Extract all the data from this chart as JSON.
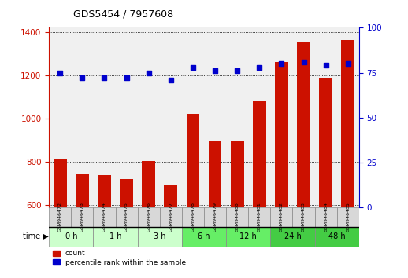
{
  "title": "GDS5454 / 7957608",
  "samples": [
    "GSM946472",
    "GSM946473",
    "GSM946474",
    "GSM946475",
    "GSM946476",
    "GSM946477",
    "GSM946478",
    "GSM946479",
    "GSM946480",
    "GSM946481",
    "GSM946482",
    "GSM946483",
    "GSM946484",
    "GSM946485"
  ],
  "counts": [
    810,
    745,
    737,
    720,
    805,
    695,
    1020,
    895,
    900,
    1080,
    1260,
    1355,
    1190,
    1365
  ],
  "percentile_ranks": [
    75,
    72,
    72,
    72,
    75,
    71,
    78,
    76,
    76,
    78,
    80,
    81,
    79,
    80
  ],
  "time_groups": [
    {
      "label": "0 h",
      "start": 0,
      "end": 2,
      "color": "#ccffcc"
    },
    {
      "label": "1 h",
      "start": 2,
      "end": 4,
      "color": "#ccffcc"
    },
    {
      "label": "3 h",
      "start": 4,
      "end": 6,
      "color": "#ccffcc"
    },
    {
      "label": "6 h",
      "start": 6,
      "end": 8,
      "color": "#66ee66"
    },
    {
      "label": "12 h",
      "start": 8,
      "end": 10,
      "color": "#66ee66"
    },
    {
      "label": "24 h",
      "start": 10,
      "end": 12,
      "color": "#44cc44"
    },
    {
      "label": "48 h",
      "start": 12,
      "end": 14,
      "color": "#44cc44"
    }
  ],
  "ylim_left": [
    590,
    1420
  ],
  "ylim_right": [
    0,
    100
  ],
  "yticks_left": [
    600,
    800,
    1000,
    1200,
    1400
  ],
  "yticks_right": [
    0,
    25,
    50,
    75,
    100
  ],
  "bar_color": "#cc1100",
  "dot_color": "#0000cc",
  "background_color": "#ffffff",
  "plot_bg_color": "#f0f0f0",
  "grid_color": "#000000",
  "label_count": "count",
  "label_pct": "percentile rank within the sample"
}
